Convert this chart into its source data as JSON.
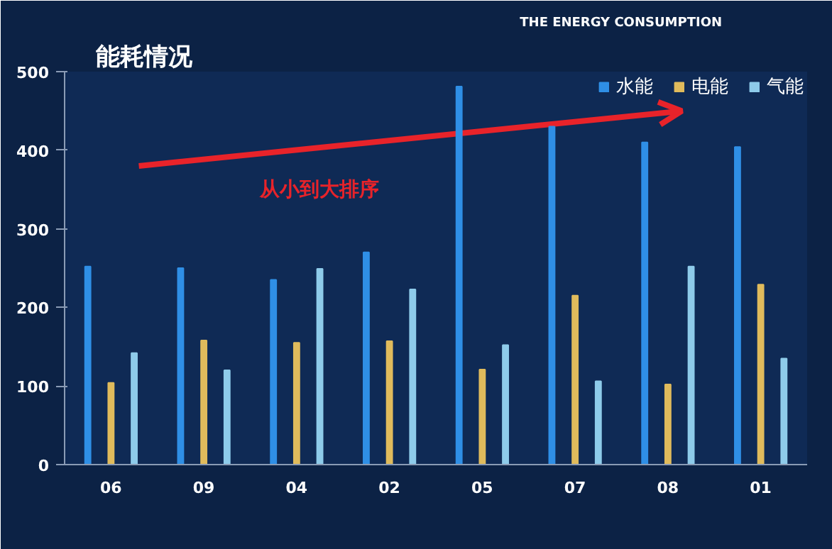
{
  "chart_data": {
    "type": "bar",
    "title": "能耗情况",
    "subtitle": "THE ENERGY CONSUMPTION",
    "categories": [
      "06",
      "09",
      "04",
      "02",
      "05",
      "07",
      "08",
      "01"
    ],
    "series": [
      {
        "name": "水能",
        "color": "#2f8fe6",
        "values": [
          252,
          250,
          235,
          270,
          481,
          430,
          410,
          404
        ]
      },
      {
        "name": "电能",
        "color": "#e0bb5c",
        "values": [
          104,
          158,
          155,
          157,
          121,
          215,
          102,
          229
        ]
      },
      {
        "name": "气能",
        "color": "#8ecbea",
        "values": [
          142,
          120,
          249,
          223,
          152,
          106,
          252,
          135
        ]
      }
    ],
    "ylim": [
      0,
      500
    ],
    "yticks": [
      0,
      100,
      200,
      300,
      400,
      500
    ],
    "grid": false,
    "legend": "top right",
    "annotations": [
      "从小到大排序"
    ]
  }
}
